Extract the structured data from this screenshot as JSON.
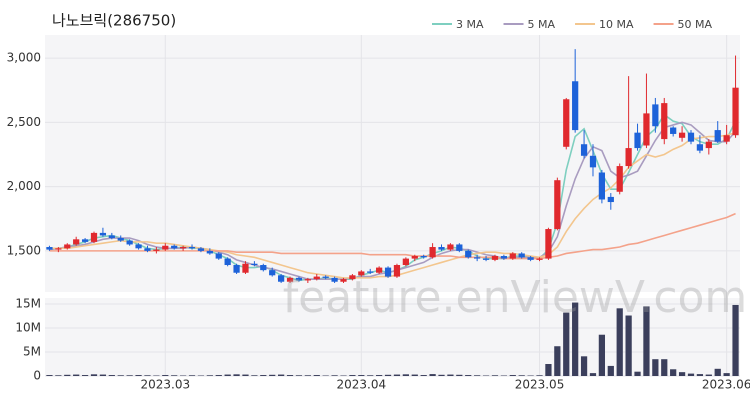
{
  "chart_data": {
    "type": "candlestick",
    "title": "나노브릭(286750)",
    "watermark": "feature.enViewV.com",
    "grid": true,
    "up_color": "#e0292e",
    "down_color": "#1d62d9",
    "categories": [
      null,
      null,
      null,
      null,
      null,
      null,
      null,
      null,
      null,
      null,
      null,
      null,
      null,
      "2023.03",
      null,
      null,
      null,
      null,
      null,
      null,
      null,
      null,
      null,
      null,
      null,
      null,
      null,
      null,
      null,
      null,
      null,
      null,
      null,
      null,
      null,
      "2023.04",
      null,
      null,
      null,
      null,
      null,
      null,
      null,
      null,
      null,
      null,
      null,
      null,
      null,
      null,
      null,
      null,
      null,
      null,
      null,
      "2023.05",
      null,
      null,
      null,
      null,
      null,
      null,
      null,
      null,
      null,
      null,
      null,
      null,
      null,
      null,
      null,
      null,
      null,
      null,
      null,
      null,
      "2023.06",
      null
    ],
    "open": [
      1530,
      1510,
      1520,
      1550,
      1590,
      1570,
      1640,
      1620,
      1600,
      1580,
      1550,
      1520,
      1500,
      1510,
      1540,
      1520,
      1530,
      1520,
      1500,
      1480,
      1440,
      1390,
      1330,
      1400,
      1390,
      1350,
      1310,
      1260,
      1290,
      1270,
      1280,
      1300,
      1290,
      1260,
      1280,
      1310,
      1340,
      1330,
      1370,
      1300,
      1390,
      1440,
      1460,
      1450,
      1530,
      1510,
      1550,
      1500,
      1450,
      1440,
      1430,
      1460,
      1440,
      1480,
      1450,
      1430,
      1440,
      1670,
      2310,
      2820,
      2330,
      2240,
      2110,
      1920,
      1960,
      2160,
      2420,
      2320,
      2640,
      2370,
      2460,
      2380,
      2420,
      2330,
      2300,
      2440,
      2350,
      2400
    ],
    "high": [
      1540,
      1530,
      1560,
      1610,
      1600,
      1650,
      1680,
      1640,
      1620,
      1590,
      1560,
      1540,
      1530,
      1560,
      1550,
      1540,
      1550,
      1530,
      1520,
      1490,
      1450,
      1400,
      1420,
      1420,
      1400,
      1370,
      1320,
      1300,
      1300,
      1290,
      1320,
      1310,
      1300,
      1290,
      1320,
      1350,
      1360,
      1380,
      1380,
      1400,
      1450,
      1470,
      1470,
      1560,
      1550,
      1560,
      1560,
      1510,
      1470,
      1460,
      1470,
      1470,
      1490,
      1490,
      1460,
      1450,
      1680,
      2070,
      2690,
      3070,
      2440,
      2330,
      2130,
      1950,
      2180,
      2860,
      2490,
      2880,
      2690,
      2690,
      2470,
      2470,
      2440,
      2400,
      2370,
      2510,
      2480,
      3020
    ],
    "low": [
      1500,
      1490,
      1510,
      1540,
      1560,
      1560,
      1610,
      1590,
      1570,
      1540,
      1510,
      1490,
      1480,
      1500,
      1510,
      1500,
      1510,
      1490,
      1470,
      1430,
      1380,
      1320,
      1320,
      1380,
      1340,
      1300,
      1250,
      1250,
      1260,
      1250,
      1270,
      1280,
      1250,
      1250,
      1270,
      1300,
      1320,
      1320,
      1290,
      1290,
      1380,
      1420,
      1440,
      1440,
      1500,
      1500,
      1490,
      1440,
      1420,
      1420,
      1420,
      1430,
      1430,
      1440,
      1420,
      1420,
      1430,
      1660,
      2290,
      2420,
      2220,
      2080,
      1870,
      1820,
      1940,
      2140,
      2280,
      2300,
      2420,
      2330,
      2390,
      2350,
      2330,
      2260,
      2250,
      2340,
      2330,
      2380
    ],
    "close": [
      1510,
      1520,
      1550,
      1590,
      1570,
      1640,
      1620,
      1600,
      1580,
      1550,
      1520,
      1500,
      1510,
      1540,
      1520,
      1530,
      1520,
      1500,
      1480,
      1440,
      1390,
      1330,
      1400,
      1390,
      1350,
      1310,
      1260,
      1290,
      1270,
      1280,
      1300,
      1290,
      1260,
      1280,
      1310,
      1340,
      1330,
      1370,
      1300,
      1390,
      1440,
      1460,
      1450,
      1530,
      1510,
      1550,
      1500,
      1450,
      1440,
      1430,
      1460,
      1440,
      1480,
      1450,
      1430,
      1440,
      1670,
      2050,
      2680,
      2440,
      2240,
      2150,
      1900,
      1880,
      2160,
      2300,
      2300,
      2570,
      2470,
      2650,
      2410,
      2420,
      2350,
      2280,
      2350,
      2350,
      2400,
      2770
    ],
    "ylim": [
      1180,
      3180
    ],
    "yticks": [
      {
        "value": 1500,
        "label": "1,500"
      },
      {
        "value": 2000,
        "label": "2,000"
      },
      {
        "value": 2500,
        "label": "2,500"
      },
      {
        "value": 3000,
        "label": "3,000"
      }
    ],
    "moving_averages": [
      {
        "name": "3 MA",
        "color": "#7ecfc0",
        "values": [
          1510,
          1520,
          1530,
          1550,
          1570,
          1600,
          1610,
          1620,
          1600,
          1580,
          1550,
          1520,
          1510,
          1520,
          1520,
          1530,
          1520,
          1520,
          1500,
          1470,
          1440,
          1390,
          1370,
          1370,
          1380,
          1350,
          1310,
          1290,
          1270,
          1280,
          1280,
          1290,
          1280,
          1280,
          1280,
          1310,
          1330,
          1350,
          1330,
          1350,
          1380,
          1430,
          1450,
          1480,
          1500,
          1530,
          1520,
          1500,
          1460,
          1440,
          1440,
          1440,
          1460,
          1460,
          1450,
          1440,
          1510,
          1720,
          2130,
          2390,
          2450,
          2280,
          2100,
          1980,
          1980,
          2110,
          2250,
          2390,
          2450,
          2560,
          2510,
          2490,
          2390,
          2350,
          2330,
          2330,
          2370,
          2510
        ]
      },
      {
        "name": "5 MA",
        "color": "#a99cc0",
        "values": [
          1510,
          1520,
          1530,
          1540,
          1550,
          1570,
          1590,
          1600,
          1600,
          1600,
          1580,
          1550,
          1530,
          1520,
          1520,
          1520,
          1530,
          1520,
          1510,
          1490,
          1470,
          1430,
          1410,
          1390,
          1370,
          1360,
          1340,
          1320,
          1300,
          1280,
          1280,
          1280,
          1280,
          1280,
          1290,
          1300,
          1300,
          1320,
          1330,
          1350,
          1370,
          1390,
          1410,
          1450,
          1480,
          1500,
          1510,
          1510,
          1490,
          1470,
          1460,
          1440,
          1450,
          1450,
          1450,
          1450,
          1490,
          1610,
          1850,
          2060,
          2220,
          2310,
          2280,
          2120,
          2070,
          2090,
          2120,
          2240,
          2360,
          2460,
          2480,
          2500,
          2480,
          2420,
          2360,
          2350,
          2350,
          2430
        ]
      },
      {
        "name": "10 MA",
        "color": "#f3c68e",
        "values": [
          1520,
          1520,
          1520,
          1530,
          1540,
          1550,
          1560,
          1570,
          1580,
          1570,
          1570,
          1570,
          1560,
          1560,
          1550,
          1540,
          1530,
          1520,
          1510,
          1500,
          1490,
          1470,
          1460,
          1450,
          1430,
          1410,
          1390,
          1370,
          1350,
          1330,
          1320,
          1310,
          1300,
          1290,
          1290,
          1290,
          1290,
          1300,
          1300,
          1310,
          1330,
          1350,
          1370,
          1390,
          1410,
          1430,
          1450,
          1470,
          1480,
          1490,
          1490,
          1480,
          1480,
          1470,
          1460,
          1450,
          1470,
          1530,
          1650,
          1750,
          1830,
          1900,
          1950,
          1990,
          2060,
          2150,
          2200,
          2250,
          2230,
          2250,
          2290,
          2320,
          2370,
          2380,
          2390,
          2390,
          2400,
          2420
        ]
      },
      {
        "name": "50 MA",
        "color": "#f4a28a",
        "values": [
          1500,
          1500,
          1500,
          1500,
          1500,
          1500,
          1500,
          1500,
          1500,
          1500,
          1500,
          1500,
          1500,
          1500,
          1500,
          1500,
          1500,
          1500,
          1500,
          1500,
          1500,
          1490,
          1490,
          1490,
          1490,
          1490,
          1480,
          1480,
          1480,
          1480,
          1480,
          1480,
          1480,
          1480,
          1480,
          1480,
          1470,
          1470,
          1470,
          1470,
          1470,
          1460,
          1460,
          1460,
          1460,
          1460,
          1450,
          1450,
          1450,
          1450,
          1450,
          1440,
          1440,
          1440,
          1440,
          1440,
          1450,
          1460,
          1480,
          1490,
          1500,
          1510,
          1510,
          1520,
          1530,
          1550,
          1560,
          1580,
          1600,
          1620,
          1640,
          1660,
          1680,
          1700,
          1720,
          1740,
          1760,
          1790
        ]
      }
    ],
    "volume": {
      "color": "#3b3f5c",
      "ylim": [
        0,
        16250000
      ],
      "yticks": [
        0,
        {
          "value": 5000000,
          "label": "5M"
        },
        {
          "value": 10000000,
          "label": "10M"
        },
        {
          "value": 15000000,
          "label": "15M"
        }
      ],
      "values": [
        200000,
        150000,
        250000,
        300000,
        200000,
        350000,
        300000,
        200000,
        150000,
        150000,
        200000,
        150000,
        100000,
        200000,
        150000,
        100000,
        150000,
        100000,
        150000,
        200000,
        300000,
        350000,
        300000,
        150000,
        200000,
        250000,
        300000,
        200000,
        150000,
        150000,
        200000,
        100000,
        150000,
        100000,
        200000,
        200000,
        150000,
        200000,
        250000,
        300000,
        350000,
        300000,
        200000,
        400000,
        250000,
        300000,
        250000,
        200000,
        150000,
        100000,
        150000,
        100000,
        200000,
        150000,
        100000,
        150000,
        2500000,
        6200000,
        13200000,
        15300000,
        4100000,
        600000,
        8600000,
        2100000,
        14100000,
        12600000,
        900000,
        14500000,
        3500000,
        3500000,
        1400000,
        800000,
        500000,
        400000,
        300000,
        1500000,
        600000,
        14800000
      ]
    }
  }
}
